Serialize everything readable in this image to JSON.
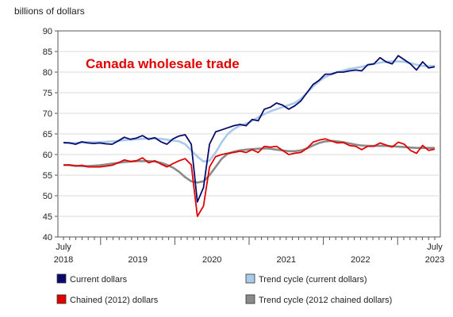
{
  "chart_data": {
    "type": "line",
    "title": "Canada wholesale trade",
    "ylabel": "billions of dollars",
    "ylim": [
      40,
      90
    ],
    "yticks": [
      40,
      45,
      50,
      55,
      60,
      65,
      70,
      75,
      80,
      85,
      90
    ],
    "x_start": "2018-07",
    "x_end": "2023-07",
    "x_tick_labels": [
      {
        "date": "2018-07",
        "line1": "July",
        "line2": "2018"
      },
      {
        "date": "2019-07",
        "line1": "",
        "line2": "2019"
      },
      {
        "date": "2020-07",
        "line1": "",
        "line2": "2020"
      },
      {
        "date": "2021-07",
        "line1": "",
        "line2": "2021"
      },
      {
        "date": "2022-07",
        "line1": "",
        "line2": "2022"
      },
      {
        "date": "2023-07",
        "line1": "July",
        "line2": "2023"
      }
    ],
    "grid": true,
    "legend_position": "bottom",
    "series": [
      {
        "name": "Current dollars",
        "color": "#0a0a6e",
        "style": "line",
        "values": [
          62.9,
          62.8,
          62.5,
          63.1,
          62.8,
          62.7,
          62.8,
          62.6,
          62.5,
          63.3,
          64.2,
          63.7,
          64.0,
          64.6,
          63.7,
          64.1,
          63.1,
          62.5,
          63.8,
          64.5,
          64.8,
          62.5,
          48.5,
          52.0,
          62.5,
          65.5,
          66.0,
          66.5,
          67.0,
          67.3,
          67.0,
          68.5,
          68.2,
          71.0,
          71.5,
          72.5,
          72.0,
          71.0,
          71.8,
          73.0,
          75.0,
          77.0,
          78.0,
          79.5,
          79.5,
          80.0,
          80.0,
          80.3,
          80.5,
          80.3,
          81.8,
          82.0,
          83.5,
          82.5,
          82.0,
          84.0,
          83.0,
          82.0,
          80.5,
          82.5,
          81.0,
          81.3
        ]
      },
      {
        "name": "Trend cycle (current dollars)",
        "color": "#a8cbea",
        "style": "line",
        "values": [
          62.8,
          62.8,
          62.8,
          62.9,
          63.0,
          63.0,
          63.0,
          63.1,
          63.2,
          63.3,
          63.5,
          63.6,
          63.7,
          63.8,
          63.9,
          63.9,
          63.8,
          63.6,
          63.4,
          63.2,
          62.5,
          61.0,
          59.5,
          58.3,
          58.5,
          60.5,
          63.0,
          65.0,
          66.2,
          67.0,
          67.5,
          68.2,
          69.0,
          69.8,
          70.5,
          71.0,
          71.5,
          72.0,
          72.5,
          73.5,
          75.0,
          76.5,
          77.8,
          78.8,
          79.5,
          80.0,
          80.4,
          80.8,
          81.0,
          81.3,
          81.7,
          82.0,
          82.3,
          82.5,
          82.6,
          82.6,
          82.5,
          82.2,
          81.8,
          81.5,
          81.4,
          81.5
        ]
      },
      {
        "name": "Chained (2012) dollars",
        "color": "#e00000",
        "style": "line",
        "values": [
          57.4,
          57.5,
          57.2,
          57.4,
          57.0,
          57.0,
          57.0,
          57.2,
          57.4,
          58.0,
          58.7,
          58.3,
          58.5,
          59.2,
          58.0,
          58.5,
          57.7,
          57.0,
          57.8,
          58.5,
          59.0,
          57.5,
          45.0,
          47.5,
          57.0,
          59.5,
          60.0,
          60.3,
          60.5,
          60.8,
          60.5,
          61.2,
          60.5,
          62.0,
          61.8,
          62.0,
          61.0,
          60.0,
          60.3,
          60.5,
          61.5,
          63.0,
          63.5,
          63.8,
          63.3,
          62.8,
          62.9,
          62.2,
          62.0,
          61.2,
          62.0,
          62.0,
          62.8,
          62.3,
          61.8,
          63.0,
          62.5,
          61.0,
          60.3,
          62.2,
          61.0,
          61.3
        ]
      },
      {
        "name": "Trend cycle (2012 chained dollars)",
        "color": "#8a8a8a",
        "style": "line",
        "values": [
          57.5,
          57.4,
          57.3,
          57.2,
          57.2,
          57.3,
          57.4,
          57.6,
          57.8,
          58.0,
          58.2,
          58.3,
          58.4,
          58.4,
          58.4,
          58.3,
          58.0,
          57.5,
          56.8,
          55.8,
          54.5,
          53.5,
          53.2,
          53.5,
          55.0,
          57.0,
          59.0,
          60.2,
          60.7,
          61.0,
          61.2,
          61.3,
          61.4,
          61.5,
          61.4,
          61.2,
          61.0,
          60.8,
          60.8,
          61.0,
          61.5,
          62.2,
          62.8,
          63.2,
          63.3,
          63.2,
          63.0,
          62.7,
          62.4,
          62.2,
          62.1,
          62.1,
          62.1,
          62.1,
          62.0,
          61.9,
          61.8,
          61.7,
          61.6,
          61.6,
          61.6,
          61.6
        ]
      }
    ]
  }
}
